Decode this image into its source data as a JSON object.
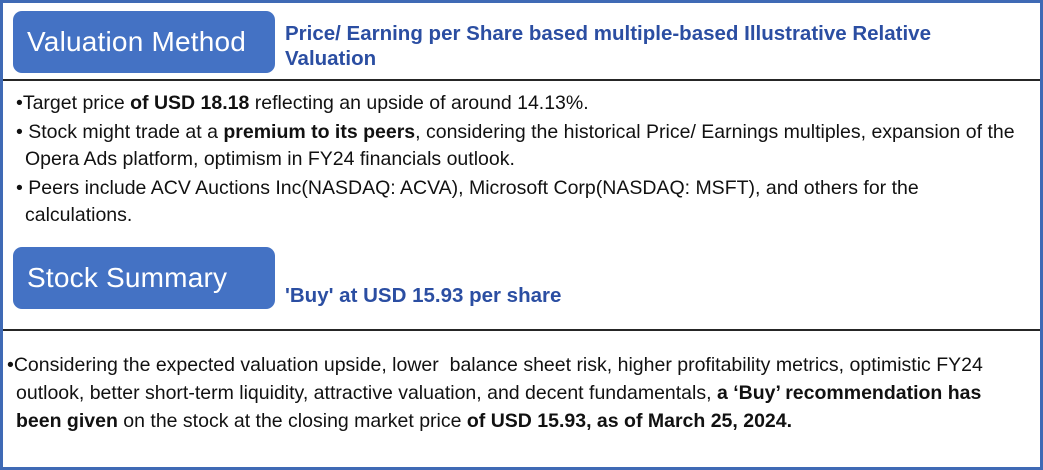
{
  "colors": {
    "tab_background": "#4472C4",
    "heading_blue": "#2b4ea2",
    "border_blue": "#3f6ab5",
    "body_text": "#111111"
  },
  "valuation": {
    "tab_label": "Valuation Method",
    "subtitle": "Price/ Earning per Share based multiple-based Illustrative Relative Valuation",
    "bullets": {
      "b1": {
        "pre": "•Target price ",
        "bold": "of USD 18.18",
        "post": " reflecting an upside of around 14.13%."
      },
      "b2": {
        "pre": "• Stock might trade at a ",
        "bold": "premium to its peers",
        "post": ", considering the historical Price/ Earnings multiples, expansion of the Opera Ads platform, optimism in FY24 financials outlook."
      },
      "b3": {
        "text": "• Peers include ACV Auctions Inc(NASDAQ: ACVA), Microsoft Corp(NASDAQ: MSFT), and others for the calculations."
      }
    }
  },
  "summary": {
    "tab_label": "Stock Summary",
    "subtitle": "'Buy' at USD 15.93 per share",
    "paragraph": {
      "p1": "•Considering the expected valuation upside, lower  balance sheet risk, higher profitability metrics, optimistic FY24 outlook, better short-term liquidity, attractive valuation, and decent fundamentals, ",
      "b1": "a ‘Buy’ recommendation has been given",
      "p2": " on the stock at the closing market price ",
      "b2": "of USD 15.93, as of March 25, 2024."
    }
  }
}
